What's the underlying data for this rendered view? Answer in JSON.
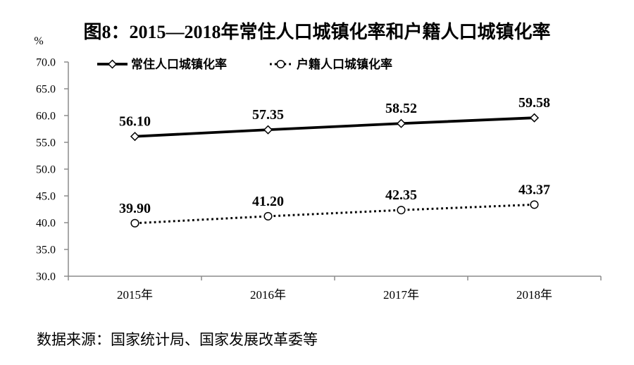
{
  "page": {
    "background": "#ffffff",
    "text_color": "#000000",
    "axis_color": "#8c8c8c"
  },
  "chart_data": {
    "type": "line",
    "title": "图8：2015—2018年常住人口城镇化率和户籍人口城镇化率",
    "unit_label": "%",
    "categories": [
      "2015年",
      "2016年",
      "2017年",
      "2018年"
    ],
    "series": [
      {
        "id": "permanent-resident-urbanization-rate",
        "name": "常住人口城镇化率",
        "values": [
          56.1,
          57.35,
          58.52,
          59.58
        ],
        "point_labels": [
          "56.10",
          "57.35",
          "58.52",
          "59.58"
        ],
        "line_style": "solid",
        "marker": "diamond",
        "color": "#000000"
      },
      {
        "id": "registered-household-urbanization-rate",
        "name": "户籍人口城镇化率",
        "values": [
          39.9,
          41.2,
          42.35,
          43.37
        ],
        "point_labels": [
          "39.90",
          "41.20",
          "42.35",
          "43.37"
        ],
        "line_style": "dotted",
        "marker": "circle",
        "color": "#000000"
      }
    ],
    "y_axis": {
      "min": 30,
      "max": 70,
      "step": 5,
      "tick_labels": [
        "30.0",
        "35.0",
        "40.0",
        "45.0",
        "50.0",
        "55.0",
        "60.0",
        "65.0",
        "70.0"
      ]
    },
    "x_axis": {
      "tick_labels": [
        "2015年",
        "2016年",
        "2017年",
        "2018年"
      ]
    },
    "legend_position": "top-inside",
    "grid": false
  },
  "footer": {
    "source": "数据来源：国家统计局、国家发展改革委等"
  }
}
